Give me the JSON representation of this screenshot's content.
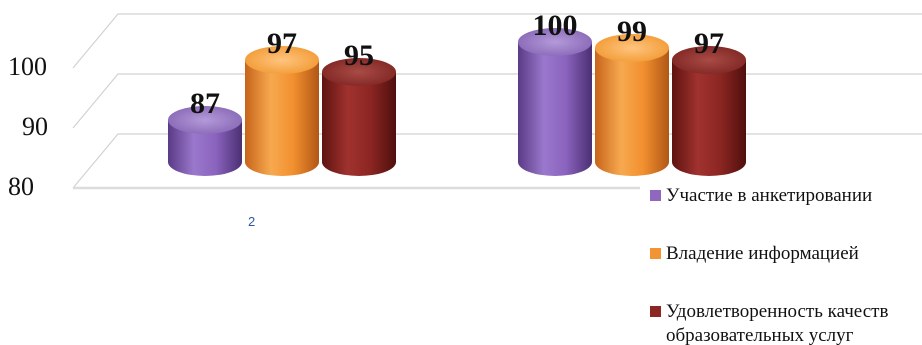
{
  "chart_data": {
    "type": "bar",
    "style": "3d-cylinder",
    "categories": [
      "2",
      ""
    ],
    "series": [
      {
        "name": "Участие в анкетировании",
        "values": [
          87,
          100
        ],
        "color": "#8f67bf"
      },
      {
        "name": "Владение информацией",
        "values": [
          97,
          99
        ],
        "color": "#f39434"
      },
      {
        "name": "Удовлетворенность качеством образовательных услуг",
        "values": [
          95,
          97
        ],
        "color": "#8c2623"
      }
    ],
    "yticks": [
      80,
      90,
      100
    ],
    "ylim": [
      80,
      100
    ],
    "grid": true,
    "legend": "bottom-right",
    "legend_lines": [
      [
        "Участие в анкетировании"
      ],
      [
        "Владение информацией"
      ],
      [
        "Удовлетворенность качеств",
        "образовательных услуг"
      ]
    ]
  }
}
